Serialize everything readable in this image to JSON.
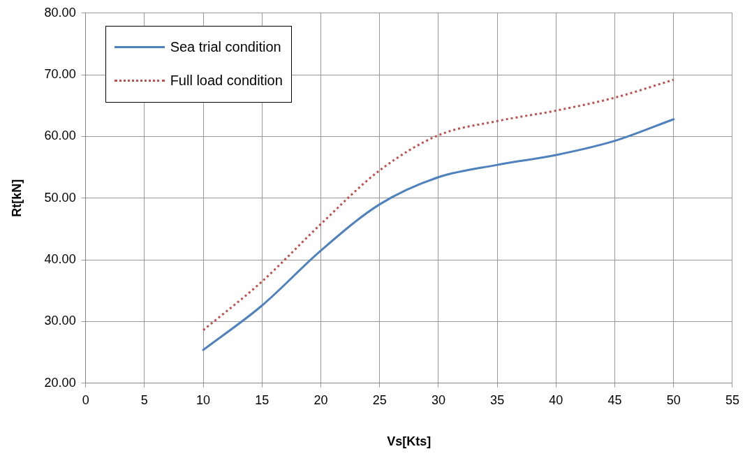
{
  "chart_data": {
    "type": "line",
    "xlabel": "Vs[Kts]",
    "ylabel": "Rt[kN]",
    "x": [
      10,
      15,
      20,
      25,
      30,
      35,
      40,
      45,
      50
    ],
    "series": [
      {
        "name": "Sea trial condition",
        "color": "#4f81bd",
        "line_style": "solid",
        "values": [
          25.4,
          32.6,
          41.5,
          49.0,
          53.4,
          55.4,
          57.0,
          59.3,
          62.8
        ]
      },
      {
        "name": "Full load condition",
        "color": "#c0504d",
        "line_style": "dotted",
        "values": [
          28.6,
          36.5,
          45.8,
          54.5,
          60.2,
          62.5,
          64.2,
          66.3,
          69.2
        ]
      }
    ],
    "xlim": [
      0,
      55
    ],
    "xticks": [
      0,
      5,
      10,
      15,
      20,
      25,
      30,
      35,
      40,
      45,
      50,
      55
    ],
    "ylim": [
      20,
      80
    ],
    "yticks": [
      {
        "value": 20,
        "label": "20.00"
      },
      {
        "value": 30,
        "label": "30.00"
      },
      {
        "value": 40,
        "label": "40.00"
      },
      {
        "value": 50,
        "label": "50.00"
      },
      {
        "value": 60,
        "label": "60.00"
      },
      {
        "value": 70,
        "label": "70.00"
      },
      {
        "value": 80,
        "label": "80.00"
      }
    ],
    "grid": true,
    "legend": "top left",
    "marker": "none"
  }
}
